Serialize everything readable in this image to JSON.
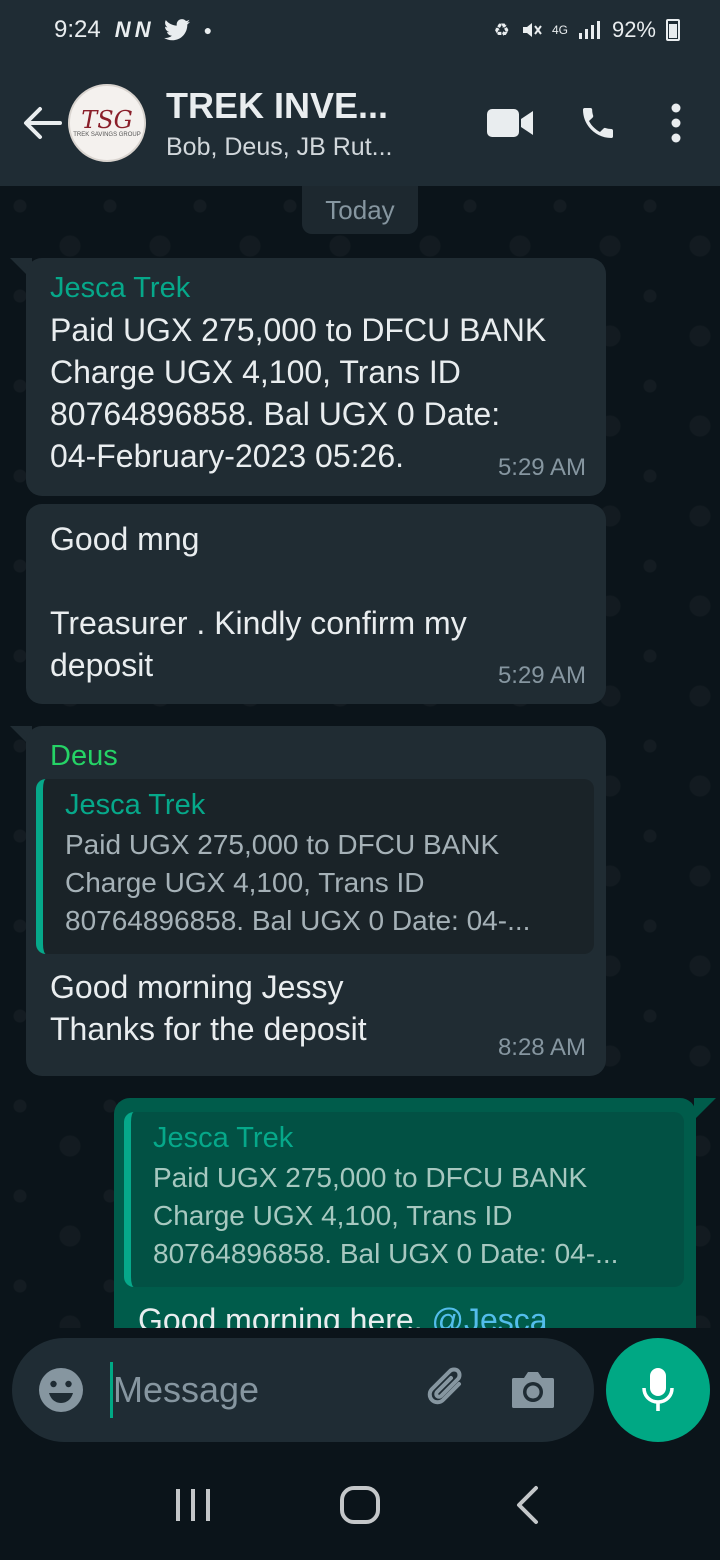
{
  "status_bar": {
    "time": "9:24",
    "net_icons": "N N",
    "battery": "92%",
    "signal_text": "4G"
  },
  "header": {
    "group_name": "TREK INVE...",
    "participants": "Bob, Deus, JB Rut...",
    "avatar_initials": "TSG",
    "avatar_subtext": "TREK SAVINGS GROUP"
  },
  "chat": {
    "date_chip": "Today",
    "messages": [
      {
        "sender": "Jesca Trek",
        "sender_color": "#06a88a",
        "text": "Paid UGX 275,000 to DFCU BANK\nCharge UGX 4,100, Trans ID\n80764896858. Bal UGX 0 Date:\n04-February-2023 05:26.",
        "time": "5:29 AM"
      },
      {
        "text": "Good mng\n\nTreasurer . Kindly confirm my\ndeposit",
        "time": "5:29 AM"
      },
      {
        "sender": "Deus",
        "sender_color": "#25d366",
        "quote_sender": "Jesca Trek",
        "quote_text": "Paid UGX 275,000 to DFCU BANK\nCharge UGX 4,100, Trans ID\n80764896858. Bal UGX 0 Date: 04-...",
        "text": "Good morning Jessy\nThanks for the deposit",
        "time": "8:28 AM"
      },
      {
        "quote_sender": "Jesca Trek",
        "quote_text": "Paid UGX 275,000 to DFCU BANK\nCharge UGX 4,100, Trans ID\n80764896858. Bal UGX 0 Date: 04-...",
        "text_prefix": "Good morning here. ",
        "mention": "@Jesca"
      }
    ]
  },
  "composer": {
    "placeholder": "Message"
  }
}
